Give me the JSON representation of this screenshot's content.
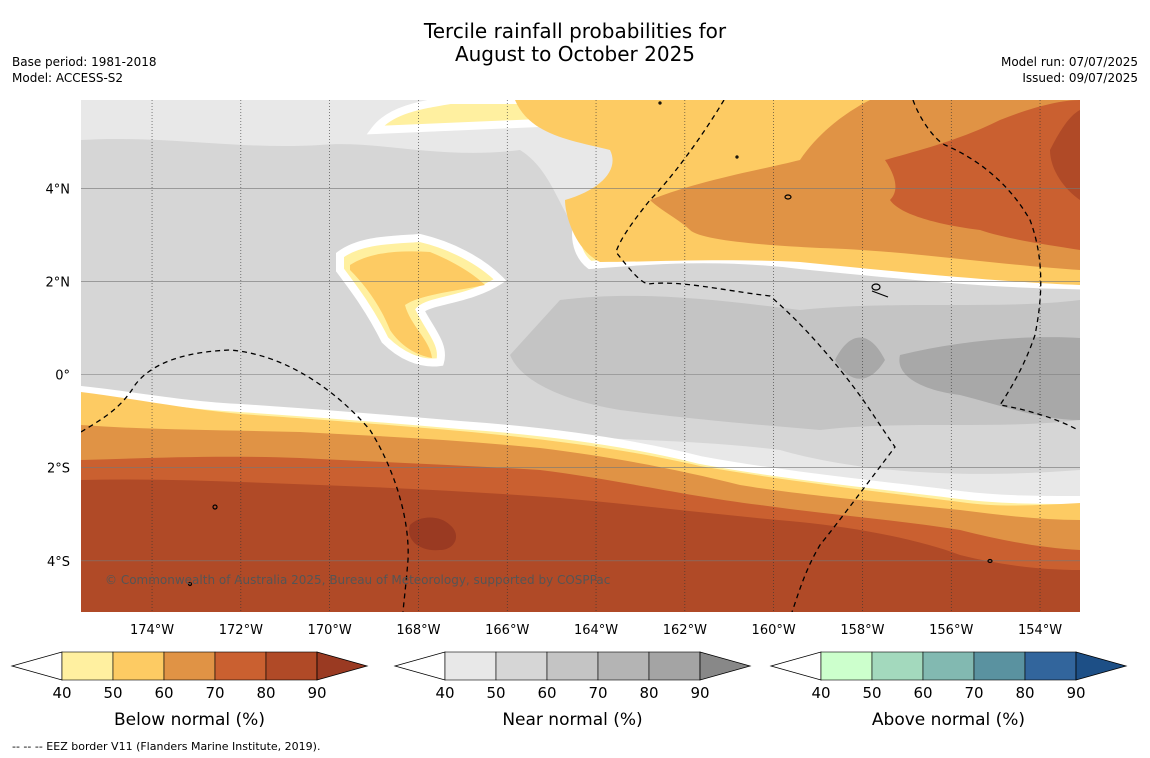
{
  "header": {
    "title_line1": "Tercile rainfall probabilities for",
    "title_line2": "August to October 2025",
    "base_period": "Base period: 1981-2018",
    "model": "Model: ACCESS-S2",
    "model_run": "Model run: 07/07/2025",
    "issued": "Issued: 09/07/2025"
  },
  "map": {
    "copyright": "© Commonwealth of Australia 2025, Bureau of Meteorology, supported by COSPPac",
    "x_ticks": [
      "174°W",
      "172°W",
      "170°W",
      "168°W",
      "166°W",
      "164°W",
      "162°W",
      "160°W",
      "158°W",
      "156°W",
      "154°W"
    ],
    "y_ticks": [
      "4°N",
      "2°N",
      "0°",
      "2°S",
      "4°S"
    ],
    "lon_range": [
      -175.6,
      -153.1
    ],
    "lat_range": [
      -5.1,
      5.9
    ],
    "lon_ticks": [
      -174,
      -172,
      -170,
      -168,
      -166,
      -164,
      -162,
      -160,
      -158,
      -156,
      -154
    ],
    "lat_ticks": [
      4,
      2,
      0,
      -2,
      -4
    ]
  },
  "legends": [
    {
      "label": "Below normal (%)",
      "ticks": [
        "40",
        "50",
        "60",
        "70",
        "80",
        "90"
      ],
      "colors": [
        "#fff0a0",
        "#fdcb63",
        "#e09345",
        "#ca6030",
        "#b04a27"
      ],
      "arrow": "#9a3a22"
    },
    {
      "label": "Near normal (%)",
      "ticks": [
        "40",
        "50",
        "60",
        "70",
        "80",
        "90"
      ],
      "colors": [
        "#e8e8e8",
        "#d6d6d6",
        "#c4c4c4",
        "#b4b4b4",
        "#a4a4a4"
      ],
      "arrow": "#888888"
    },
    {
      "label": "Above normal (%)",
      "ticks": [
        "40",
        "50",
        "60",
        "70",
        "80",
        "90"
      ],
      "colors": [
        "#ccffcc",
        "#a3d9bd",
        "#82b9b1",
        "#5a92a0",
        "#32659c"
      ],
      "arrow": "#1d4f86"
    }
  ],
  "footer": {
    "note": "--  --  -- EEZ border V11 (Flanders Marine Institute, 2019)."
  }
}
